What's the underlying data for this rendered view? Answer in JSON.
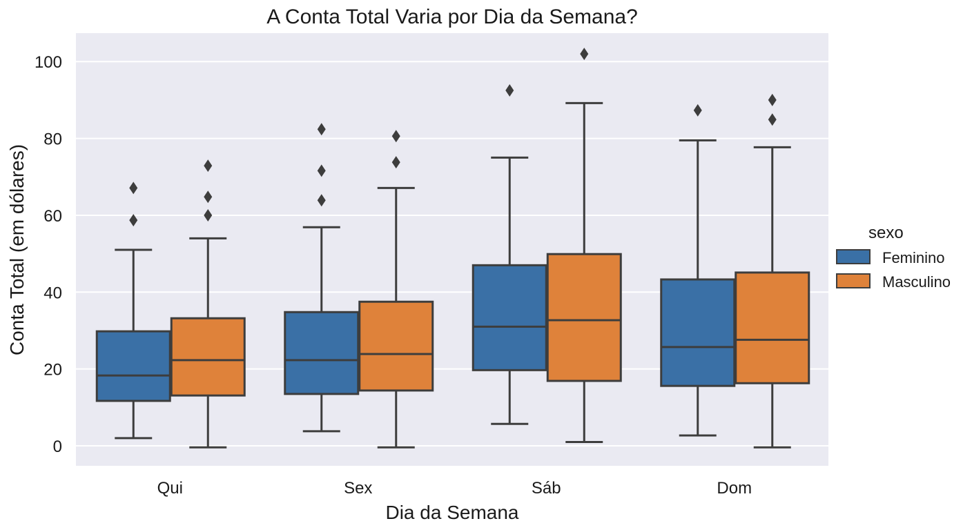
{
  "chart_data": {
    "type": "box",
    "title": "A Conta Total Varia por Dia da Semana?",
    "xlabel": "Dia da Semana",
    "ylabel": "Conta Total (em dólares)",
    "ylim": [
      -5.2,
      107.4
    ],
    "yticks": [
      0,
      20,
      40,
      60,
      80,
      100
    ],
    "grid": true,
    "categories": [
      "Qui",
      "Sex",
      "Sáb",
      "Dom"
    ],
    "legend": {
      "title": "sexo",
      "placement": "right"
    },
    "series": [
      {
        "name": "Feminino",
        "color": "#3a70a6",
        "boxes": [
          {
            "whislo": 2.0,
            "q1": 11.7,
            "med": 18.3,
            "q3": 29.8,
            "whishi": 51.0,
            "fliers": [
              58.7,
              67.1
            ]
          },
          {
            "whislo": 3.8,
            "q1": 13.5,
            "med": 22.3,
            "q3": 34.8,
            "whishi": 56.9,
            "fliers": [
              63.9,
              71.6,
              82.4
            ]
          },
          {
            "whislo": 5.7,
            "q1": 19.7,
            "med": 31.0,
            "q3": 47.0,
            "whishi": 75.0,
            "fliers": [
              92.5
            ]
          },
          {
            "whislo": 2.7,
            "q1": 15.6,
            "med": 25.7,
            "q3": 43.3,
            "whishi": 79.5,
            "fliers": [
              87.3
            ]
          }
        ]
      },
      {
        "name": "Masculino",
        "color": "#df823a",
        "boxes": [
          {
            "whislo": -0.4,
            "q1": 13.1,
            "med": 22.3,
            "q3": 33.2,
            "whishi": 54.0,
            "fliers": [
              60.0,
              64.8,
              72.9
            ]
          },
          {
            "whislo": -0.4,
            "q1": 14.4,
            "med": 23.9,
            "q3": 37.5,
            "whishi": 67.1,
            "fliers": [
              73.8,
              80.6
            ]
          },
          {
            "whislo": 1.0,
            "q1": 16.9,
            "med": 32.7,
            "q3": 49.9,
            "whishi": 89.2,
            "fliers": [
              102.0
            ]
          },
          {
            "whislo": -0.4,
            "q1": 16.3,
            "med": 27.6,
            "q3": 45.1,
            "whishi": 77.7,
            "fliers": [
              84.9,
              90.0
            ]
          }
        ]
      }
    ]
  }
}
